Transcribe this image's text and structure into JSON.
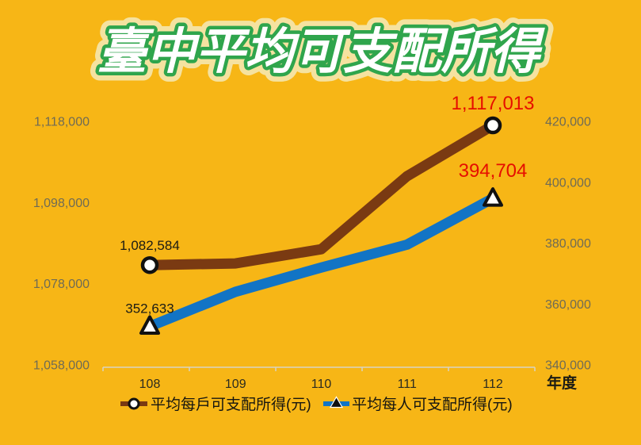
{
  "page": {
    "background": "#F7B616"
  },
  "title": {
    "text": "臺中平均可支配所得",
    "fill": "#FFFFFF",
    "outline": "#2FA54C",
    "glow": "#F5F1CE"
  },
  "chart_data": {
    "type": "line",
    "title": "臺中平均可支配所得",
    "categories": [
      "108",
      "109",
      "110",
      "111",
      "112"
    ],
    "x_axis_title": "年度",
    "grid": false,
    "legend_position": "bottom",
    "series": [
      {
        "name": "平均每戶可支配所得(元)",
        "axis": "left",
        "color": "#7A3A12",
        "marker": "circle",
        "values": [
          1082584,
          1083000,
          1086500,
          1104500,
          1117013
        ]
      },
      {
        "name": "平均每人可支配所得(元)",
        "axis": "right",
        "color": "#1274C5",
        "marker": "triangle",
        "values": [
          352633,
          364000,
          372000,
          379500,
          394704
        ]
      }
    ],
    "left_axis": {
      "min": 1058000,
      "max": 1118000,
      "tick_step": 20000,
      "tick_values": [
        1058000,
        1078000,
        1098000,
        1118000
      ],
      "tick_labels": [
        "1,058,000",
        "1,078,000",
        "1,098,000",
        "1,118,000"
      ],
      "color": "#6F6B55"
    },
    "right_axis": {
      "min": 340000,
      "max": 420000,
      "tick_step": 20000,
      "tick_values": [
        340000,
        360000,
        380000,
        400000,
        420000
      ],
      "tick_labels": [
        "340,000",
        "360,000",
        "380,000",
        "400,000",
        "420,000"
      ],
      "color": "#6F6B55"
    },
    "point_labels": [
      {
        "series": 0,
        "index": 0,
        "text": "1,082,584",
        "color": "#1C1C14",
        "font_size": 17,
        "dy": -19
      },
      {
        "series": 0,
        "index": 4,
        "text": "1,117,013",
        "color": "#E60E00",
        "font_size": 24,
        "dy": -20
      },
      {
        "series": 1,
        "index": 0,
        "text": "352,633",
        "color": "#1C1C14",
        "font_size": 17,
        "dy": -17
      },
      {
        "series": 1,
        "index": 4,
        "text": "394,704",
        "color": "#E60E00",
        "font_size": 24,
        "dy": -27
      }
    ]
  }
}
